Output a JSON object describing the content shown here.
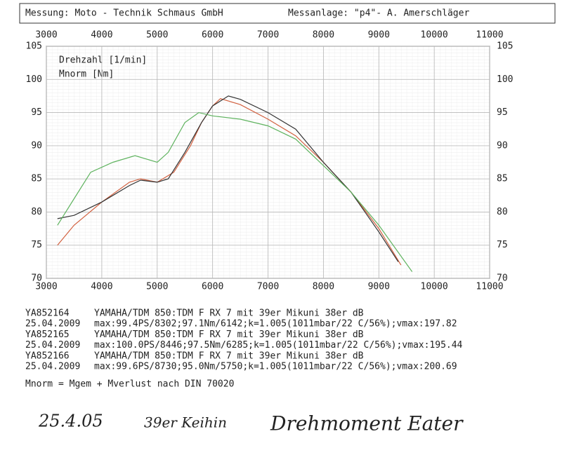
{
  "chart_data": {
    "type": "line",
    "header_left": "Messung: Moto - Technik Schmaus GmbH",
    "header_right": "Messanlage: \"p4\"- A. Amerschläger",
    "x_label": "Drehzahl [1/min]",
    "y_label": "Mnorm [Nm]",
    "xlim": [
      3000,
      11000
    ],
    "xticks": [
      3000,
      4000,
      5000,
      6000,
      7000,
      8000,
      9000,
      10000,
      11000
    ],
    "ylim": [
      70,
      105
    ],
    "yticks": [
      70,
      75,
      80,
      85,
      90,
      95,
      100,
      105
    ],
    "grid": true,
    "series": [
      {
        "name": "YA852164",
        "model": "YAMAHA/TDM   850:TDM F RX 7 mit 39er Mikuni 38er dB",
        "date": "25.04.2009",
        "stats": "max:99.4PS/8302;97.1Nm/6142;k=1.005(1011mbar/22 C/56%);vmax:197.82",
        "color": "#d2603f",
        "x": [
          3200,
          3500,
          4000,
          4500,
          4700,
          5000,
          5300,
          5600,
          5800,
          6000,
          6142,
          6500,
          7000,
          7500,
          8000,
          8500,
          9000,
          9400
        ],
        "values": [
          75,
          78,
          81.5,
          84.5,
          85,
          84.5,
          86,
          90,
          93.5,
          96,
          97.1,
          96.2,
          94,
          91.5,
          87.5,
          83,
          77.5,
          72
        ]
      },
      {
        "name": "YA852165",
        "model": "YAMAHA/TDM   850:TDM F RX 7 mit 39er Mikuni 38er dB",
        "date": "25.04.2009",
        "stats": "max:100.0PS/8446;97.5Nm/6285;k=1.005(1011mbar/22 C/56%);vmax:195.44",
        "color": "#333333",
        "x": [
          3200,
          3500,
          4000,
          4500,
          4700,
          5000,
          5200,
          5500,
          5800,
          6000,
          6285,
          6500,
          7000,
          7500,
          8000,
          8500,
          9000,
          9350
        ],
        "values": [
          79,
          79.5,
          81.5,
          84,
          84.8,
          84.5,
          85,
          89,
          93.5,
          96,
          97.5,
          97,
          95,
          92.5,
          87.5,
          83,
          77,
          72.5
        ]
      },
      {
        "name": "YA852166",
        "model": "YAMAHA/TDM   850:TDM F RX 7 mit 39er Mikuni 38er dB",
        "date": "25.04.2009",
        "stats": "max:99.6PS/8730;95.0Nm/5750;k=1.005(1011mbar/22 C/56%);vmax:200.69",
        "color": "#5fb35f",
        "x": [
          3200,
          3500,
          3800,
          4200,
          4600,
          5000,
          5200,
          5500,
          5750,
          6000,
          6500,
          7000,
          7500,
          8000,
          8500,
          9000,
          9600
        ],
        "values": [
          78,
          82,
          86,
          87.5,
          88.5,
          87.5,
          89,
          93.5,
          95,
          94.5,
          94,
          93,
          91,
          87,
          83,
          78,
          71
        ]
      }
    ],
    "footnote": "Mnorm = Mgem + Mverlust nach DIN 70020",
    "handwriting": [
      "25.4.05",
      "39er Keihin",
      "Drehmoment Eater"
    ]
  }
}
